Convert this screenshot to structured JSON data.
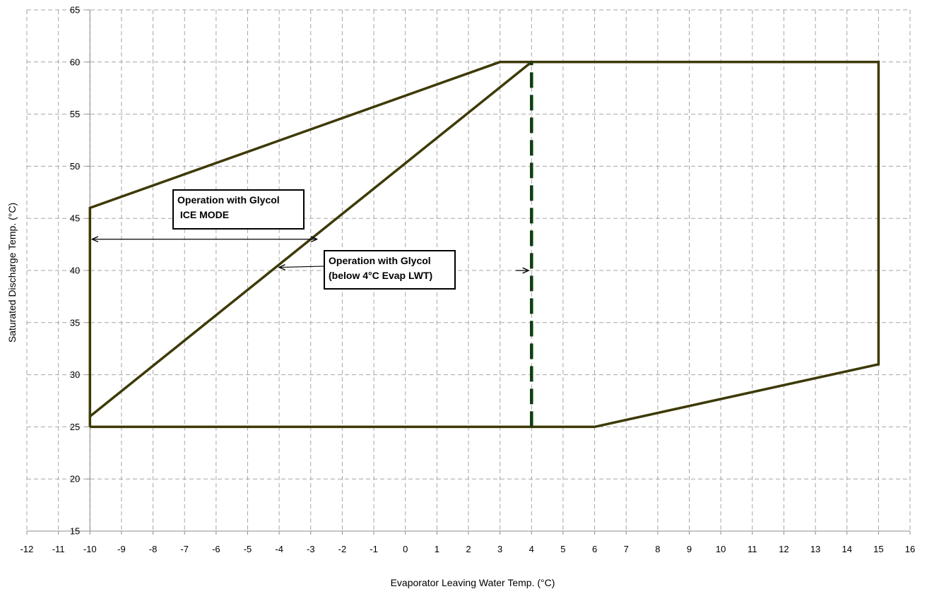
{
  "chart_data": {
    "type": "line",
    "xlabel": "Evaporator Leaving  Water Temp.  (°C)",
    "ylabel": "Saturated Discharge Temp. (°C)",
    "xlim": [
      -12,
      16
    ],
    "ylim": [
      15,
      65
    ],
    "x_ticks": [
      -12,
      -11,
      -10,
      -9,
      -8,
      -7,
      -6,
      -5,
      -4,
      -3,
      -2,
      -1,
      0,
      1,
      2,
      3,
      4,
      5,
      6,
      7,
      8,
      9,
      10,
      11,
      12,
      13,
      14,
      15,
      16
    ],
    "y_ticks": [
      15,
      20,
      25,
      30,
      35,
      40,
      45,
      50,
      55,
      60,
      65
    ],
    "grid": true,
    "colors": {
      "envelope": "#3d3a06",
      "boundary": "#0f3d10",
      "arrow": "#000000"
    },
    "series": [
      {
        "style": "solid",
        "points": [
          [
            -10,
            25
          ],
          [
            -10,
            46
          ],
          [
            3,
            60
          ],
          [
            15,
            60
          ],
          [
            15,
            31
          ],
          [
            6,
            25
          ],
          [
            -10,
            25
          ]
        ]
      },
      {
        "style": "solid",
        "points": [
          [
            -10,
            26
          ],
          [
            4,
            60
          ]
        ]
      },
      {
        "style": "dashed",
        "points": [
          [
            4,
            25
          ],
          [
            4,
            60
          ]
        ]
      }
    ],
    "annotations": [
      {
        "lines": [
          "Operation with Glycol",
          " ICE MODE"
        ],
        "arrow_from": [
          -2.8,
          43
        ],
        "arrow_to": [
          -10,
          43
        ]
      },
      {
        "lines": [
          "Operation with Glycol",
          "(below 4°C Evap LWT)"
        ],
        "arrows": [
          {
            "from": [
              -1.4,
              40.5
            ],
            "to": [
              -4,
              40.3
            ]
          },
          {
            "from": [
              3.5,
              40
            ],
            "to": [
              4,
              40
            ]
          }
        ]
      }
    ]
  }
}
